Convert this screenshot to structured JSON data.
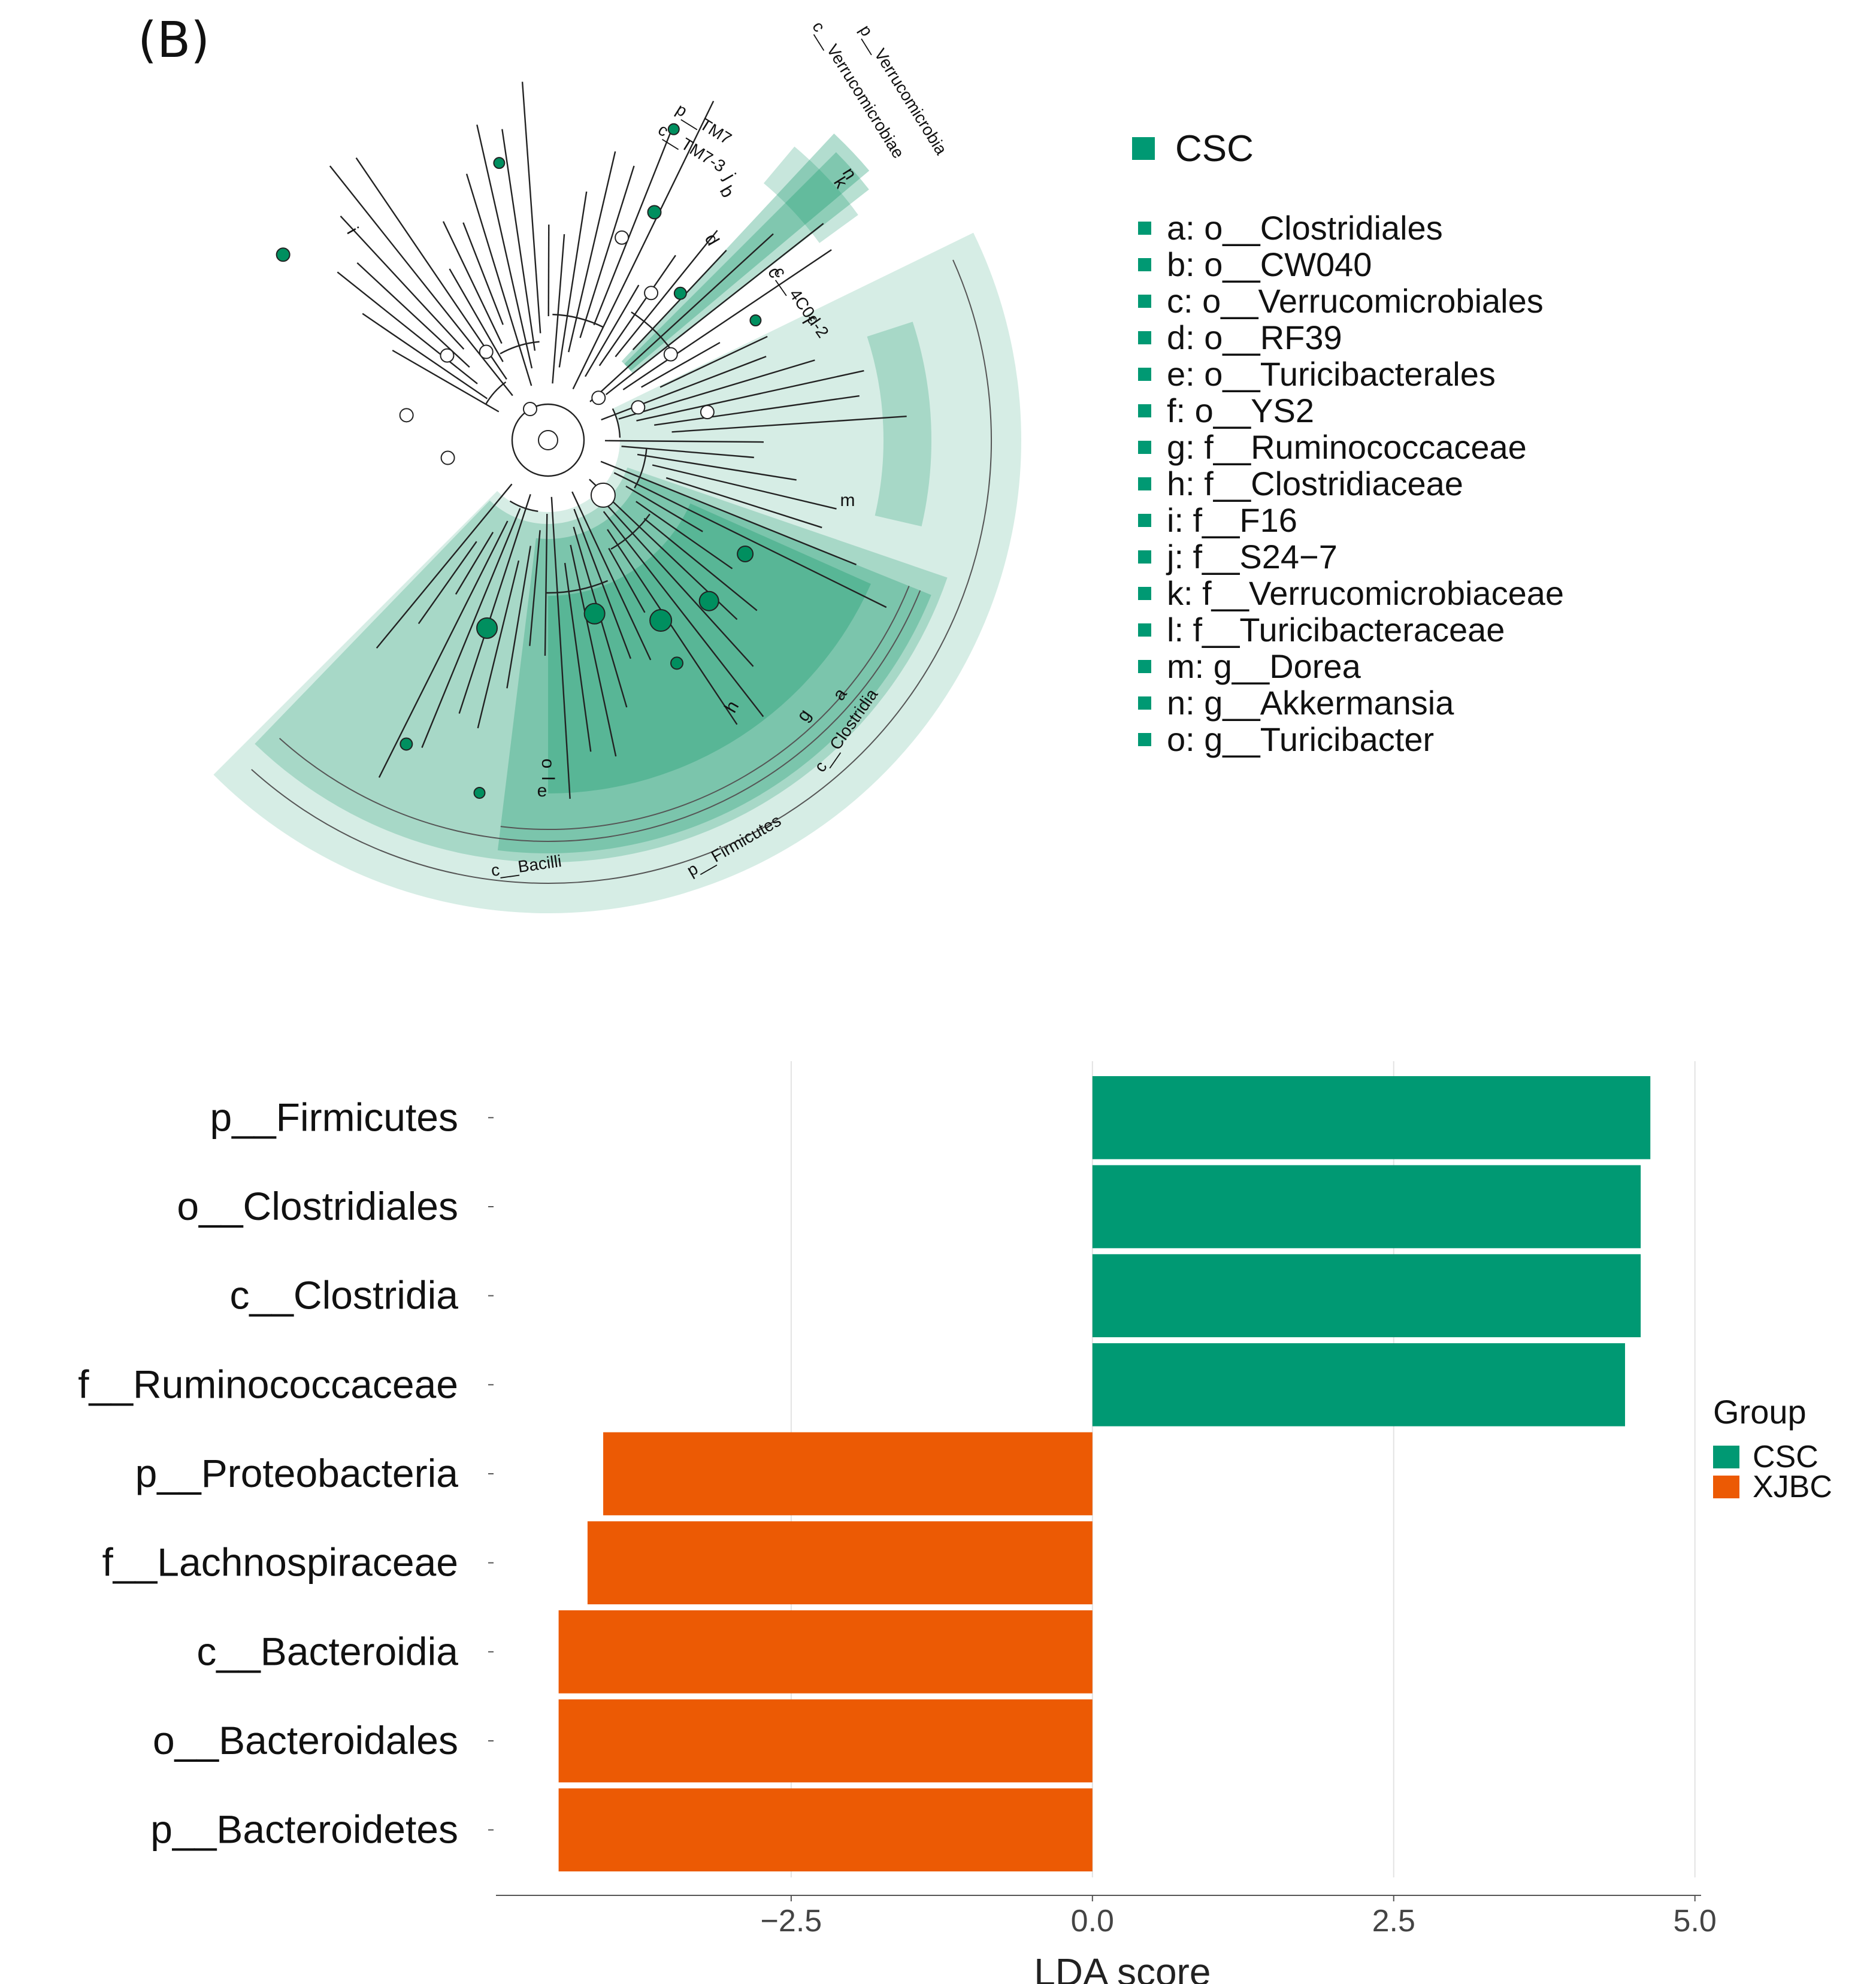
{
  "panel_label": "(B)",
  "colors": {
    "csc": "#009973",
    "xjbc": "#EC5A04",
    "clado_band": "#008f5f"
  },
  "cladogram": {
    "legend": {
      "group": "CSC"
    },
    "taxa": [
      {
        "code": "a",
        "label": "a: o__Clostridiales"
      },
      {
        "code": "b",
        "label": "b: o__CW040"
      },
      {
        "code": "c",
        "label": "c: o__Verrucomicrobiales"
      },
      {
        "code": "d",
        "label": "d: o__RF39"
      },
      {
        "code": "e",
        "label": "e: o__Turicibacterales"
      },
      {
        "code": "f",
        "label": "f: o__YS2"
      },
      {
        "code": "g",
        "label": "g: f__Ruminococcaceae"
      },
      {
        "code": "h",
        "label": "h: f__Clostridiaceae"
      },
      {
        "code": "i",
        "label": "i: f__F16"
      },
      {
        "code": "j",
        "label": "j: f__S24−7"
      },
      {
        "code": "k",
        "label": "k: f__Verrucomicrobiaceae"
      },
      {
        "code": "l",
        "label": "l: f__Turicibacteraceae"
      },
      {
        "code": "m",
        "label": "m: g__Dorea"
      },
      {
        "code": "n",
        "label": "n: g__Akkermansia"
      },
      {
        "code": "o",
        "label": "o: g__Turicibacter"
      }
    ],
    "clade_labels": [
      "p__Verrucomicrobia",
      "c__Verrucomicrobiae",
      "p__TM7",
      "c__TM7-3",
      "c__4C0d-2",
      "c__Clostridia",
      "p__Firmicutes",
      "c__Bacilli"
    ]
  },
  "chart_data": {
    "type": "bar",
    "orientation": "horizontal",
    "xlabel": "LDA score",
    "ylabel": "",
    "x_ticks": [
      -2.5,
      0.0,
      2.5,
      5.0
    ],
    "x_tick_labels": [
      "−2.5",
      "0.0",
      "2.5",
      "5.0"
    ],
    "xlim": [
      -4.95,
      5.25
    ],
    "grid": true,
    "categories": [
      "p__Firmicutes",
      "o__Clostridiales",
      "c__Clostridia",
      "f__Ruminococcaceae",
      "p__Proteobacteria",
      "f__Lachnospiraceae",
      "c__Bacteroidia",
      "o__Bacteroidales",
      "p__Bacteroidetes"
    ],
    "values": [
      4.63,
      4.55,
      4.55,
      4.42,
      -4.06,
      -4.19,
      -4.43,
      -4.43,
      -4.43
    ],
    "groups": [
      "CSC",
      "CSC",
      "CSC",
      "CSC",
      "XJBC",
      "XJBC",
      "XJBC",
      "XJBC",
      "XJBC"
    ],
    "legend": {
      "title": "Group",
      "entries": [
        "CSC",
        "XJBC"
      ],
      "position": "right"
    }
  }
}
